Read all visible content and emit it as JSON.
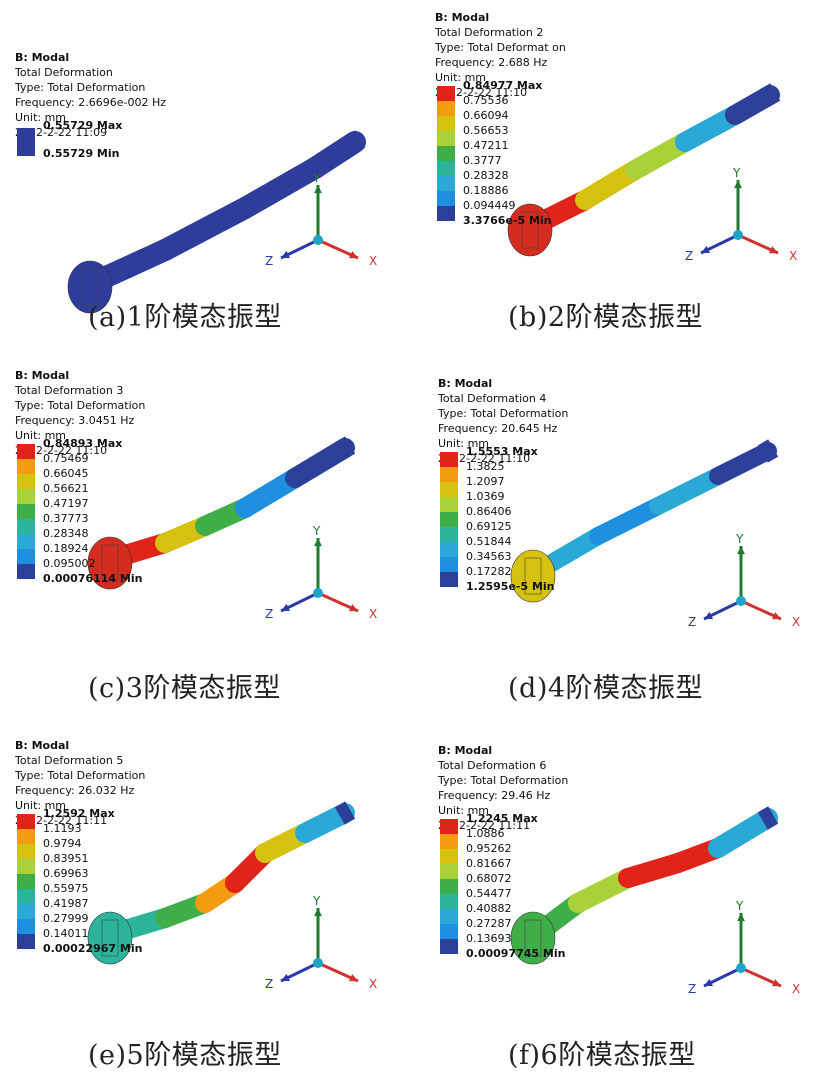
{
  "panels": [
    {
      "header": [
        "B: Modal",
        "Total Deformation",
        "Type: Total Deformation",
        "Frequency: 2.6696e-002 Hz",
        "Unit: mm",
        "2022-2-22 11:09"
      ],
      "legend": [
        "0.55729 Max",
        "0.55729 Min"
      ],
      "caption": "(a)1阶模态振型"
    },
    {
      "header": [
        "B: Modal",
        "Total Deformation 2",
        "Type: Total Deformat on",
        "Frequency: 2.688 Hz",
        "Unit: mm",
        "2022-2-22 11:10"
      ],
      "legend": [
        "0.84977 Max",
        "0.75536",
        "0.66094",
        "0.56653",
        "0.47211",
        "0.3777",
        "0.28328",
        "0.18886",
        "0.094449",
        "3.3766e-5 Min"
      ],
      "caption": "(b)2阶模态振型"
    },
    {
      "header": [
        "B: Modal",
        "Total Deformation 3",
        "Type: Total Deformation",
        "Frequency: 3.0451 Hz",
        "Unit: mm",
        "2022-2-22 11:10"
      ],
      "legend": [
        "0.84893 Max",
        "0.75469",
        "0.66045",
        "0.56621",
        "0.47197",
        "0.37773",
        "0.28348",
        "0.18924",
        "0.095002",
        "0.00076114 Min"
      ],
      "caption": "(c)3阶模态振型"
    },
    {
      "header": [
        "B: Modal",
        "Total Deformation 4",
        "Type: Total Deformation",
        "Frequency: 20.645 Hz",
        "Unit: mm",
        "2022-2-22 11:10"
      ],
      "legend": [
        "1.5553 Max",
        "1.3825",
        "1.2097",
        "1.0369",
        "0.86406",
        "0.69125",
        "0.51844",
        "0.34563",
        "0.17282",
        "1.2595e-5 Min"
      ],
      "caption": "(d)4阶模态振型"
    },
    {
      "header": [
        "B: Modal",
        "Total Deformation 5",
        "Type: Total Deformation",
        "Frequency: 26.032 Hz",
        "Unit: mm",
        "2022-2-22 11:11"
      ],
      "legend": [
        "1.2592 Max",
        "1.1193",
        "0.9794",
        "0.83951",
        "0.69963",
        "0.55975",
        "0.41987",
        "0.27999",
        "0.14011",
        "0.00022967 Min"
      ],
      "caption": "(e)5阶模态振型"
    },
    {
      "header": [
        "B: Modal",
        "Total Deformation 6",
        "Type: Total Deformation",
        "Frequency: 29.46 Hz",
        "Unit: mm",
        "2022-2-22 11:11"
      ],
      "legend": [
        "1.2245 Max",
        "1.0886",
        "0.95262",
        "0.81667",
        "0.68072",
        "0.54477",
        "0.40882",
        "0.27287",
        "0.13693",
        "0.00097745 Min"
      ],
      "caption": "(f)6阶模态振型"
    }
  ],
  "axis_labels": {
    "x": "X",
    "y": "Y",
    "z": "Z"
  },
  "colors": {
    "scale": [
      "#e2231a",
      "#f39c12",
      "#d5c20e",
      "#a8d13a",
      "#3fae49",
      "#2bb39b",
      "#2aa9d6",
      "#1f8fe0",
      "#2c3f99"
    ],
    "uniform": "#2e3d9c",
    "axis_x": "#d03030",
    "axis_y": "#1f7a2e",
    "axis_z": "#2a3aa8",
    "axis_origin": "#1ba6c9"
  }
}
